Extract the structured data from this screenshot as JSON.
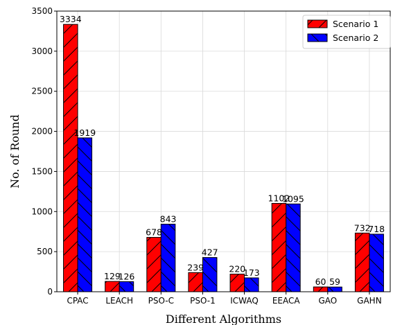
{
  "chart_data": {
    "type": "bar",
    "categories": [
      "CPAC",
      "LEACH",
      "PSO-C",
      "PSO-1",
      "ICWAQ",
      "EEACA",
      "GAO",
      "GAHN"
    ],
    "series": [
      {
        "name": "Scenario 1",
        "values": [
          3334,
          129,
          678,
          239,
          220,
          1102,
          60,
          732
        ],
        "color": "#ff0000",
        "hatch": "/"
      },
      {
        "name": "Scenario 2",
        "values": [
          1919,
          126,
          843,
          427,
          173,
          1095,
          59,
          718
        ],
        "color": "#0000ff",
        "hatch": "\\"
      }
    ],
    "xlabel": "Different Algorithms",
    "ylabel": "No. of Round",
    "ylim": [
      0,
      3500
    ],
    "yticks": [
      0,
      500,
      1000,
      1500,
      2000,
      2500,
      3000,
      3500
    ],
    "grid": true,
    "legend_position": "top-right"
  }
}
